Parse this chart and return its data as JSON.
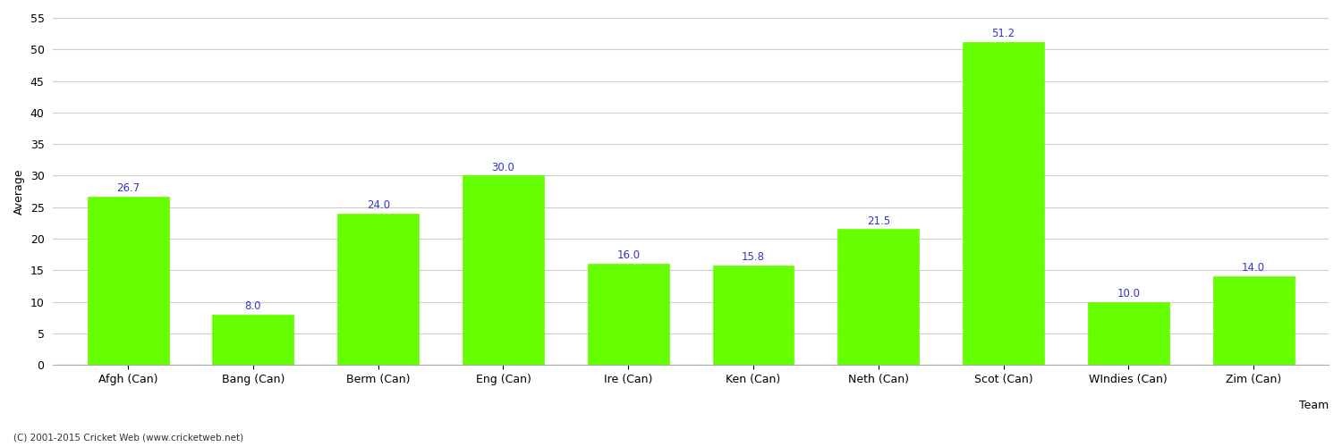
{
  "categories": [
    "Afgh (Can)",
    "Bang (Can)",
    "Berm (Can)",
    "Eng (Can)",
    "Ire (Can)",
    "Ken (Can)",
    "Neth (Can)",
    "Scot (Can)",
    "WIndies (Can)",
    "Zim (Can)"
  ],
  "values": [
    26.7,
    8.0,
    24.0,
    30.0,
    16.0,
    15.8,
    21.5,
    51.2,
    10.0,
    14.0
  ],
  "bar_color": "#66ff00",
  "bar_edge_color": "#66ff00",
  "label_color": "#3333cc",
  "xlabel": "Team",
  "ylabel": "Average",
  "ylim": [
    0,
    55
  ],
  "yticks": [
    0,
    5,
    10,
    15,
    20,
    25,
    30,
    35,
    40,
    45,
    50,
    55
  ],
  "grid_color": "#cccccc",
  "bg_color": "#ffffff",
  "label_fontsize": 8.5,
  "axis_fontsize": 9,
  "title_fontsize": 13,
  "footnote": "(C) 2001-2015 Cricket Web (www.cricketweb.net)",
  "bar_width": 0.65
}
